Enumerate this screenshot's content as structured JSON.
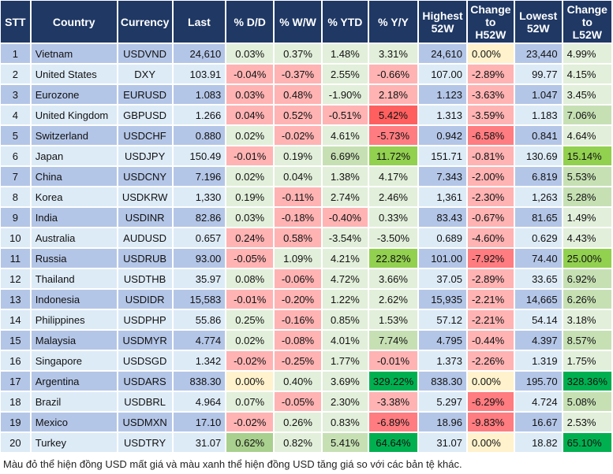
{
  "table": {
    "headers": [
      "STT",
      "Country",
      "Currency",
      "Last",
      "% D/D",
      "% W/W",
      "% YTD",
      "% Y/Y",
      "Highest\n52W",
      "Change\nto\nH52W",
      "Lowest\n52W",
      "Change\nto\nL52W"
    ],
    "colors": {
      "header_bg": "#1f3864",
      "row_dark": "#b4c6e7",
      "row_light": "#ddebf7",
      "green_light": "#e2efda",
      "green_mid": "#c6e0b4",
      "green_bright": "#92d050",
      "green_dark": "#00b050",
      "green_medium2": "#a9d08e",
      "red_light": "#ffb3b3",
      "red_mid": "#ff7c80",
      "red_strong": "#ff5f5f",
      "yellow": "#fff2cc"
    },
    "rows": [
      {
        "stt": "1",
        "country": "Vietnam",
        "currency": "USDVND",
        "last": "24,610",
        "dd": "0.03%",
        "ww": "0.37%",
        "ytd": "1.48%",
        "yy": "3.31%",
        "h52": "24,610",
        "ch": "0.00%",
        "l52": "23,440",
        "cl": "4.99%",
        "c": {
          "dd": "green_light",
          "ww": "green_light",
          "ytd": "green_light",
          "yy": "green_light",
          "ch": "yellow",
          "cl": "green_light"
        }
      },
      {
        "stt": "2",
        "country": "United States",
        "currency": "DXY",
        "last": "103.91",
        "dd": "-0.04%",
        "ww": "-0.37%",
        "ytd": "2.55%",
        "yy": "-0.66%",
        "h52": "107.00",
        "ch": "-2.89%",
        "l52": "99.77",
        "cl": "4.15%",
        "c": {
          "dd": "red_light",
          "ww": "red_light",
          "ytd": "green_light",
          "yy": "red_light",
          "ch": "red_light",
          "cl": "green_light"
        }
      },
      {
        "stt": "3",
        "country": "Eurozone",
        "currency": "EURUSD",
        "last": "1.083",
        "dd": "0.03%",
        "ww": "0.48%",
        "ytd": "-1.90%",
        "yy": "2.18%",
        "h52": "1.123",
        "ch": "-3.63%",
        "l52": "1.047",
        "cl": "3.45%",
        "c": {
          "dd": "red_light",
          "ww": "red_light",
          "ytd": "green_light",
          "yy": "red_light",
          "ch": "red_light",
          "cl": "green_light"
        }
      },
      {
        "stt": "4",
        "country": "United Kingdom",
        "currency": "GBPUSD",
        "last": "1.266",
        "dd": "0.04%",
        "ww": "0.52%",
        "ytd": "-0.51%",
        "yy": "5.42%",
        "h52": "1.313",
        "ch": "-3.59%",
        "l52": "1.183",
        "cl": "7.06%",
        "c": {
          "dd": "red_light",
          "ww": "red_light",
          "ytd": "red_light",
          "yy": "red_strong",
          "ch": "red_light",
          "cl": "green_mid"
        }
      },
      {
        "stt": "5",
        "country": "Switzerland",
        "currency": "USDCHF",
        "last": "0.880",
        "dd": "0.02%",
        "ww": "-0.02%",
        "ytd": "4.61%",
        "yy": "-5.73%",
        "h52": "0.942",
        "ch": "-6.58%",
        "l52": "0.841",
        "cl": "4.64%",
        "c": {
          "dd": "green_light",
          "ww": "red_light",
          "ytd": "green_light",
          "yy": "red_mid",
          "ch": "red_mid",
          "cl": "green_light"
        }
      },
      {
        "stt": "6",
        "country": "Japan",
        "currency": "USDJPY",
        "last": "150.49",
        "dd": "-0.01%",
        "ww": "0.19%",
        "ytd": "6.69%",
        "yy": "11.72%",
        "h52": "151.71",
        "ch": "-0.81%",
        "l52": "130.69",
        "cl": "15.14%",
        "c": {
          "dd": "red_light",
          "ww": "green_light",
          "ytd": "green_mid",
          "yy": "green_bright",
          "ch": "red_light",
          "cl": "green_bright"
        }
      },
      {
        "stt": "7",
        "country": "China",
        "currency": "USDCNY",
        "last": "7.196",
        "dd": "0.02%",
        "ww": "0.04%",
        "ytd": "1.38%",
        "yy": "4.17%",
        "h52": "7.343",
        "ch": "-2.00%",
        "l52": "6.819",
        "cl": "5.53%",
        "c": {
          "dd": "green_light",
          "ww": "green_light",
          "ytd": "green_light",
          "yy": "green_light",
          "ch": "red_light",
          "cl": "green_mid"
        }
      },
      {
        "stt": "8",
        "country": "Korea",
        "currency": "USDKRW",
        "last": "1,330",
        "dd": "0.19%",
        "ww": "-0.11%",
        "ytd": "2.74%",
        "yy": "2.46%",
        "h52": "1,361",
        "ch": "-2.30%",
        "l52": "1,263",
        "cl": "5.28%",
        "c": {
          "dd": "green_light",
          "ww": "red_light",
          "ytd": "green_light",
          "yy": "green_light",
          "ch": "red_light",
          "cl": "green_mid"
        }
      },
      {
        "stt": "9",
        "country": "India",
        "currency": "USDINR",
        "last": "82.86",
        "dd": "0.03%",
        "ww": "-0.18%",
        "ytd": "-0.40%",
        "yy": "0.33%",
        "h52": "83.43",
        "ch": "-0.67%",
        "l52": "81.65",
        "cl": "1.49%",
        "c": {
          "dd": "green_light",
          "ww": "red_light",
          "ytd": "red_light",
          "yy": "green_light",
          "ch": "red_light",
          "cl": "green_light"
        }
      },
      {
        "stt": "10",
        "country": "Australia",
        "currency": "AUDUSD",
        "last": "0.657",
        "dd": "0.24%",
        "ww": "0.58%",
        "ytd": "-3.54%",
        "yy": "-3.50%",
        "h52": "0.689",
        "ch": "-4.60%",
        "l52": "0.629",
        "cl": "4.43%",
        "c": {
          "dd": "red_light",
          "ww": "red_light",
          "ytd": "green_light",
          "yy": "green_light",
          "ch": "red_light",
          "cl": "green_light"
        }
      },
      {
        "stt": "11",
        "country": "Russia",
        "currency": "USDRUB",
        "last": "93.00",
        "dd": "-0.05%",
        "ww": "1.09%",
        "ytd": "4.21%",
        "yy": "22.82%",
        "h52": "101.00",
        "ch": "-7.92%",
        "l52": "74.40",
        "cl": "25.00%",
        "c": {
          "dd": "red_light",
          "ww": "green_light",
          "ytd": "green_light",
          "yy": "green_bright",
          "ch": "red_mid",
          "cl": "green_bright"
        }
      },
      {
        "stt": "12",
        "country": "Thailand",
        "currency": "USDTHB",
        "last": "35.97",
        "dd": "0.08%",
        "ww": "-0.06%",
        "ytd": "4.72%",
        "yy": "3.66%",
        "h52": "37.05",
        "ch": "-2.89%",
        "l52": "33.65",
        "cl": "6.92%",
        "c": {
          "dd": "green_light",
          "ww": "red_light",
          "ytd": "green_light",
          "yy": "green_light",
          "ch": "red_light",
          "cl": "green_mid"
        }
      },
      {
        "stt": "13",
        "country": "Indonesia",
        "currency": "USDIDR",
        "last": "15,583",
        "dd": "-0.01%",
        "ww": "-0.20%",
        "ytd": "1.22%",
        "yy": "2.62%",
        "h52": "15,935",
        "ch": "-2.21%",
        "l52": "14,665",
        "cl": "6.26%",
        "c": {
          "dd": "red_light",
          "ww": "red_light",
          "ytd": "green_light",
          "yy": "green_light",
          "ch": "red_light",
          "cl": "green_mid"
        }
      },
      {
        "stt": "14",
        "country": "Philippines",
        "currency": "USDPHP",
        "last": "55.86",
        "dd": "0.25%",
        "ww": "-0.16%",
        "ytd": "0.85%",
        "yy": "1.53%",
        "h52": "57.12",
        "ch": "-2.21%",
        "l52": "54.14",
        "cl": "3.18%",
        "c": {
          "dd": "green_light",
          "ww": "red_light",
          "ytd": "green_light",
          "yy": "green_light",
          "ch": "red_light",
          "cl": "green_light"
        }
      },
      {
        "stt": "15",
        "country": "Malaysia",
        "currency": "USDMYR",
        "last": "4.774",
        "dd": "0.02%",
        "ww": "-0.08%",
        "ytd": "4.01%",
        "yy": "7.74%",
        "h52": "4.795",
        "ch": "-0.44%",
        "l52": "4.397",
        "cl": "8.57%",
        "c": {
          "dd": "green_light",
          "ww": "red_light",
          "ytd": "green_light",
          "yy": "green_mid",
          "ch": "red_light",
          "cl": "green_mid"
        }
      },
      {
        "stt": "16",
        "country": "Singapore",
        "currency": "USDSGD",
        "last": "1.342",
        "dd": "-0.02%",
        "ww": "-0.25%",
        "ytd": "1.77%",
        "yy": "-0.01%",
        "h52": "1.373",
        "ch": "-2.26%",
        "l52": "1.319",
        "cl": "1.75%",
        "c": {
          "dd": "red_light",
          "ww": "red_light",
          "ytd": "green_light",
          "yy": "red_light",
          "ch": "red_light",
          "cl": "green_light"
        }
      },
      {
        "stt": "17",
        "country": "Argentina",
        "currency": "USDARS",
        "last": "838.30",
        "dd": "0.00%",
        "ww": "0.40%",
        "ytd": "3.69%",
        "yy": "329.22%",
        "h52": "838.30",
        "ch": "0.00%",
        "l52": "195.70",
        "cl": "328.36%",
        "c": {
          "dd": "yellow",
          "ww": "green_light",
          "ytd": "green_light",
          "yy": "green_dark",
          "ch": "yellow",
          "cl": "green_dark"
        }
      },
      {
        "stt": "18",
        "country": "Brazil",
        "currency": "USDBRL",
        "last": "4.964",
        "dd": "0.07%",
        "ww": "-0.05%",
        "ytd": "2.30%",
        "yy": "-3.38%",
        "h52": "5.297",
        "ch": "-6.29%",
        "l52": "4.724",
        "cl": "5.08%",
        "c": {
          "dd": "green_light",
          "ww": "red_light",
          "ytd": "green_light",
          "yy": "red_light",
          "ch": "red_mid",
          "cl": "green_mid"
        }
      },
      {
        "stt": "19",
        "country": "Mexico",
        "currency": "USDMXN",
        "last": "17.10",
        "dd": "-0.02%",
        "ww": "0.26%",
        "ytd": "0.83%",
        "yy": "-6.89%",
        "h52": "18.96",
        "ch": "-9.83%",
        "l52": "16.67",
        "cl": "2.53%",
        "c": {
          "dd": "red_light",
          "ww": "green_light",
          "ytd": "green_light",
          "yy": "red_mid",
          "ch": "red_mid",
          "cl": "green_light"
        }
      },
      {
        "stt": "20",
        "country": "Turkey",
        "currency": "USDTRY",
        "last": "31.07",
        "dd": "0.62%",
        "ww": "0.82%",
        "ytd": "5.41%",
        "yy": "64.64%",
        "h52": "31.07",
        "ch": "0.00%",
        "l52": "18.82",
        "cl": "65.10%",
        "c": {
          "dd": "green_medium2",
          "ww": "green_light",
          "ytd": "green_mid",
          "yy": "green_dark",
          "ch": "yellow",
          "cl": "green_dark"
        }
      }
    ]
  },
  "note": "Màu đỏ thể hiện đồng USD mất giá và màu xanh thể hiện đồng USD tăng giá so với các bản tệ khác."
}
